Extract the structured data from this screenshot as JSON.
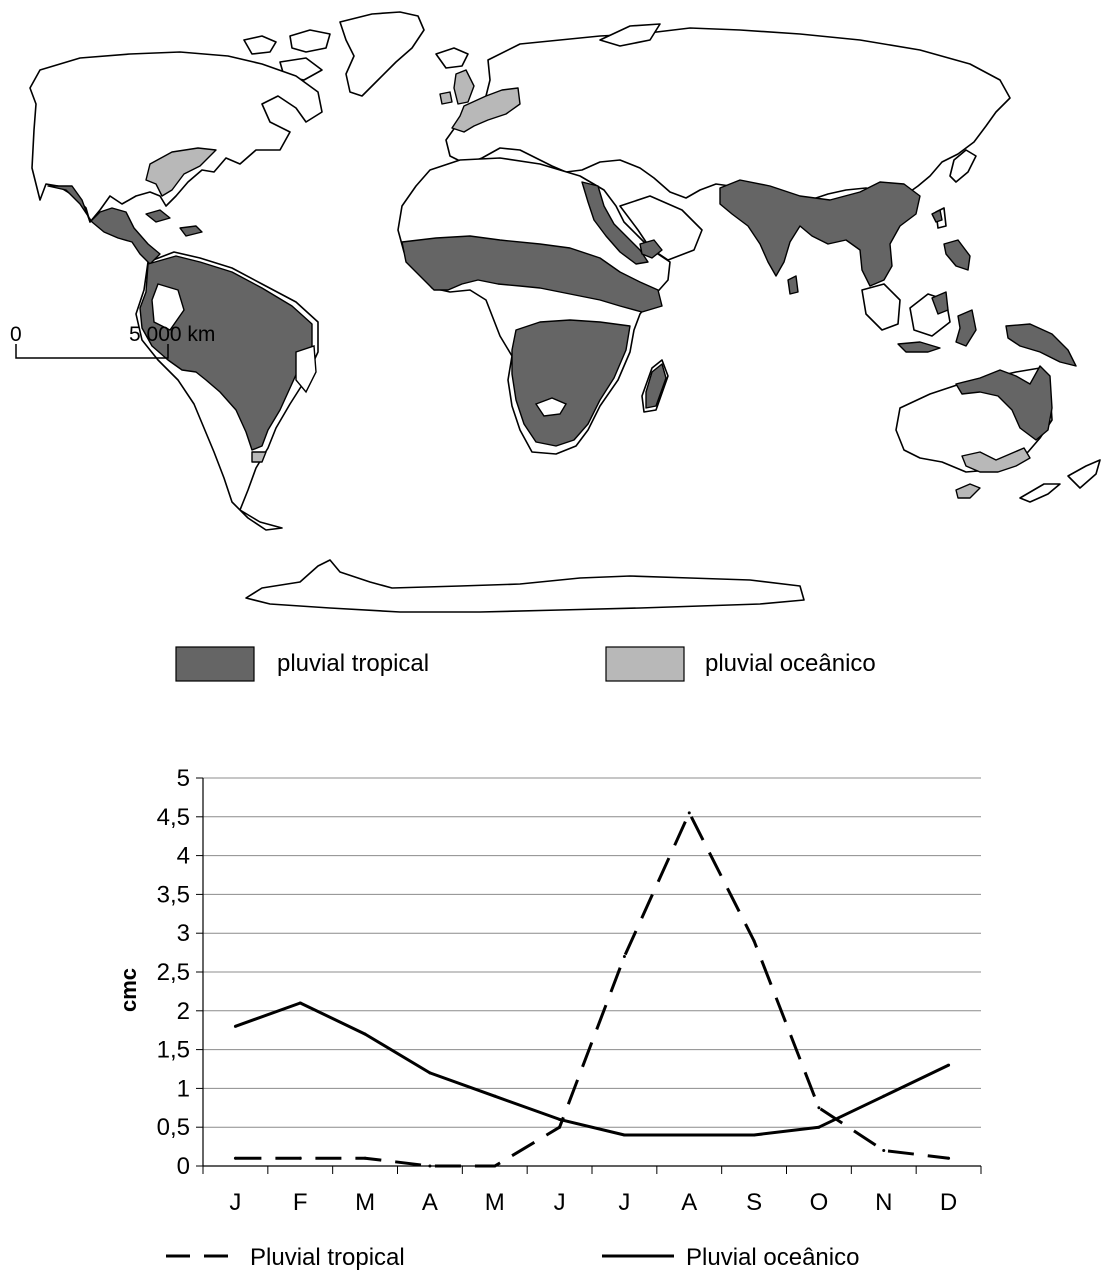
{
  "map": {
    "scale_start": "0",
    "scale_end": "5 000  km",
    "legend": [
      {
        "label": "pluvial tropical",
        "color": "#656565"
      },
      {
        "label": "pluvial oceânico",
        "color": "#b8b8b8"
      }
    ]
  },
  "chart_data": {
    "type": "line",
    "categories": [
      "J",
      "F",
      "M",
      "A",
      "M",
      "J",
      "J",
      "A",
      "S",
      "O",
      "N",
      "D"
    ],
    "ylabel": "cmc",
    "ylim": [
      0,
      5
    ],
    "yticks": [
      0,
      0.5,
      1,
      1.5,
      2,
      2.5,
      3,
      3.5,
      4,
      4.5,
      5
    ],
    "ytick_labels": [
      "0",
      "0,5",
      "1",
      "1,5",
      "2",
      "2,5",
      "3",
      "3,5",
      "4",
      "4,5",
      "5"
    ],
    "grid": true,
    "legend_position": "bottom",
    "series": [
      {
        "name": "Pluvial tropical",
        "style": "dashed",
        "color": "#000000",
        "values": [
          0.1,
          0.1,
          0.1,
          0.0,
          0.0,
          0.5,
          2.7,
          4.55,
          2.9,
          0.75,
          0.2,
          0.1
        ]
      },
      {
        "name": "Pluvial oceânico",
        "style": "solid",
        "color": "#000000",
        "values": [
          1.8,
          2.1,
          1.7,
          1.2,
          0.9,
          0.6,
          0.4,
          0.4,
          0.4,
          0.5,
          0.9,
          1.3
        ]
      }
    ]
  }
}
